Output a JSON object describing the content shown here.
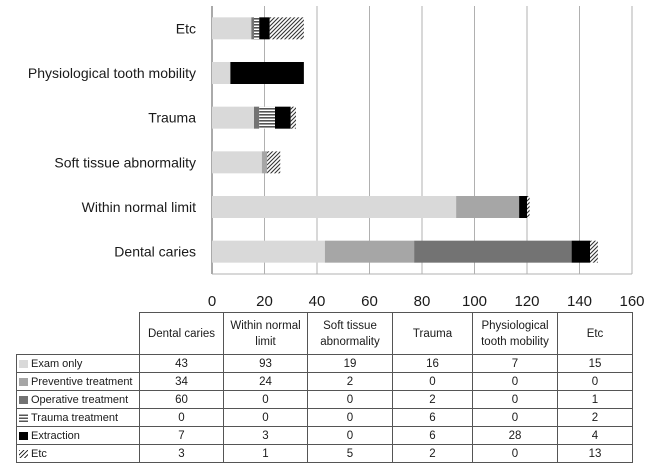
{
  "chart_data": {
    "type": "bar",
    "orientation": "horizontal",
    "stacked": true,
    "categories": [
      "Dental caries",
      "Within normal limit",
      "Soft tissue abnormality",
      "Trauma",
      "Physiological tooth mobility",
      "Etc"
    ],
    "table_column_headers": [
      [
        "Dental caries"
      ],
      [
        "Within normal",
        "limit"
      ],
      [
        "Soft tissue",
        "abnormality"
      ],
      [
        "Trauma"
      ],
      [
        "Physiological",
        "tooth mobility"
      ],
      [
        "Etc"
      ]
    ],
    "series": [
      {
        "name": "Exam only",
        "values": [
          43,
          93,
          19,
          16,
          7,
          15
        ],
        "color": "#d9d9d9",
        "pattern": "solid"
      },
      {
        "name": "Preventive treatment",
        "values": [
          34,
          24,
          2,
          0,
          0,
          0
        ],
        "color": "#a6a6a6",
        "pattern": "solid"
      },
      {
        "name": "Operative treatment",
        "values": [
          60,
          0,
          0,
          2,
          0,
          1
        ],
        "color": "#737373",
        "pattern": "solid"
      },
      {
        "name": "Trauma treatment",
        "values": [
          0,
          0,
          0,
          6,
          0,
          2
        ],
        "color": "#595959",
        "pattern": "hlines"
      },
      {
        "name": "Extraction",
        "values": [
          7,
          3,
          0,
          6,
          28,
          4
        ],
        "color": "#000000",
        "pattern": "solid"
      },
      {
        "name": "Etc",
        "values": [
          3,
          1,
          5,
          2,
          0,
          13
        ],
        "color": "#4d4d4d",
        "pattern": "diag"
      }
    ],
    "xlim": [
      0,
      160
    ],
    "xticks": [
      "0",
      "20",
      "40",
      "60",
      "80",
      "100",
      "120",
      "140",
      "160"
    ],
    "grid": true,
    "legend": "data table below chart"
  }
}
